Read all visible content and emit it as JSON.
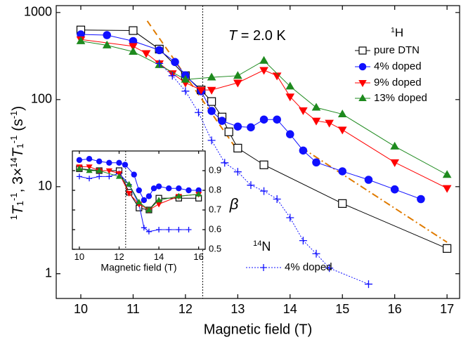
{
  "chart_data": [
    {
      "type": "line",
      "log_y": true,
      "x_label": "Magnetic field  (T)",
      "y_label": [
        "1",
        "T",
        "1",
        "-1",
        ",  3×",
        "14",
        "T",
        "1",
        "-1",
        "  (s",
        "-1",
        ")"
      ],
      "annotation": [
        "T",
        " = 2.0 K"
      ],
      "legend_title": [
        "1",
        "H"
      ],
      "nucleus_label": [
        "14",
        "N"
      ],
      "xlim": [
        9.53,
        17.24
      ],
      "ylim": [
        0.52,
        1200
      ],
      "xticks": [
        10,
        11,
        12,
        13,
        14,
        15,
        16,
        17
      ],
      "yticks": [
        1,
        10,
        100,
        1000
      ],
      "vline": 12.33,
      "series": [
        {
          "name": "pure DTN",
          "color": "#000000",
          "marker": "square-open",
          "line": "solid",
          "x": [
            10,
            11,
            11.5,
            12,
            12.3,
            12.5,
            12.7,
            12.83,
            13,
            13.5,
            15,
            17
          ],
          "values": [
            630,
            620,
            380,
            188,
            129,
            95,
            63,
            42.6,
            27.7,
            17.8,
            6.4,
            1.95
          ]
        },
        {
          "name": "4% doped",
          "color": "#1010ff",
          "marker": "circle",
          "line": "solid",
          "x": [
            10,
            10.5,
            11,
            11.5,
            11.8,
            12,
            12.3,
            12.5,
            12.7,
            13,
            13.25,
            13.5,
            13.75,
            14,
            14.25,
            14.5,
            15,
            15.5,
            16,
            16.5
          ],
          "values": [
            560,
            550,
            470,
            370,
            270,
            190,
            125,
            74,
            57,
            49,
            48,
            59,
            59,
            40,
            26,
            19,
            15,
            12,
            9.3,
            7.2
          ]
        },
        {
          "name": "9% doped",
          "color": "#ff0000",
          "marker": "triangle-down",
          "line": "solid",
          "x": [
            10,
            11,
            11.25,
            11.5,
            11.75,
            12,
            12.3,
            12.5,
            13,
            13.5,
            13.75,
            14,
            14.25,
            14.5,
            14.75,
            15,
            16,
            17
          ],
          "values": [
            490,
            410,
            340,
            260,
            200,
            156,
            129,
            129,
            156,
            218,
            188,
            108,
            75,
            57,
            54,
            45,
            19,
            9.6
          ]
        },
        {
          "name": "13% doped",
          "color": "#1e8a1e",
          "marker": "triangle-up",
          "line": "solid",
          "x": [
            10,
            10.5,
            11,
            11.5,
            12,
            12.5,
            13,
            13.5,
            14,
            14.5,
            15,
            16,
            17
          ],
          "values": [
            470,
            420,
            355,
            250,
            170,
            180,
            188,
            280,
            142,
            81,
            68,
            29,
            13.7
          ]
        },
        {
          "name": "4% doped",
          "color": "#1010ff",
          "marker": "plus",
          "line": "dotted",
          "x": [
            11.5,
            11.75,
            12,
            12.25,
            12.5,
            12.75,
            13,
            13.25,
            13.5,
            13.75,
            14,
            14.25,
            14.5,
            14.75,
            15.5
          ],
          "values": [
            260,
            188,
            125,
            71,
            34,
            18.8,
            14.8,
            10.4,
            8.9,
            7.2,
            4.4,
            2.4,
            1.7,
            1.16,
            0.76
          ]
        }
      ],
      "guides": [
        {
          "color": "#e07b00",
          "dash": "dash",
          "x": [
            11.27,
            13
          ],
          "values": [
            800,
            25.8
          ]
        },
        {
          "color": "#e07b00",
          "dash": "dashdot",
          "x": [
            14.22,
            17
          ],
          "values": [
            28,
            2.3
          ]
        }
      ]
    },
    {
      "type": "line",
      "log_y": false,
      "x_label": "Magnetic field  (T)",
      "y_label": "β",
      "xlim": [
        9.65,
        16.33
      ],
      "ylim": [
        0.5,
        1.0
      ],
      "xticks": [
        10,
        12,
        14,
        16
      ],
      "yticks": [
        0.5,
        0.6,
        0.7,
        0.8,
        0.9
      ],
      "vline": 12.33,
      "series": [
        {
          "color": "#000000",
          "marker": "square-open",
          "line": "solid",
          "x": [
            10,
            11,
            12,
            12.5,
            13,
            13.5,
            14,
            15,
            16
          ],
          "values": [
            0.91,
            0.9,
            0.9,
            0.79,
            0.71,
            0.7,
            0.76,
            0.76,
            0.76
          ]
        },
        {
          "color": "#1010ff",
          "marker": "plus",
          "line": "solid",
          "x": [
            10,
            10.5,
            11,
            11.5,
            12,
            12.5,
            13,
            13.25,
            13.5,
            14,
            14.5,
            15,
            15.5
          ],
          "values": [
            0.87,
            0.86,
            0.87,
            0.87,
            0.886,
            0.83,
            0.73,
            0.61,
            0.59,
            0.6,
            0.6,
            0.6,
            0.6
          ]
        },
        {
          "color": "#1010ff",
          "marker": "circle",
          "line": "solid",
          "x": [
            10,
            10.5,
            11,
            11.5,
            12,
            12.3,
            12.75,
            13,
            13.25,
            13.5,
            13.75,
            14,
            14.5,
            15,
            15.5,
            16
          ],
          "values": [
            0.954,
            0.96,
            0.947,
            0.94,
            0.94,
            0.93,
            0.88,
            0.8,
            0.75,
            0.77,
            0.81,
            0.82,
            0.81,
            0.81,
            0.8,
            0.8
          ]
        },
        {
          "color": "#ff0000",
          "marker": "triangle-down",
          "line": "solid",
          "x": [
            10,
            10.5,
            11,
            11.5,
            12,
            12.5,
            13,
            13.5,
            14,
            15,
            16
          ],
          "values": [
            0.92,
            0.92,
            0.9,
            0.9,
            0.886,
            0.785,
            0.73,
            0.7,
            0.73,
            0.77,
            0.78
          ]
        },
        {
          "color": "#1e8a1e",
          "marker": "triangle-up",
          "line": "solid",
          "x": [
            10,
            10.5,
            11,
            12,
            12.5,
            13,
            13.5,
            14,
            15,
            16
          ],
          "values": [
            0.91,
            0.9,
            0.9,
            0.87,
            0.83,
            0.74,
            0.7,
            0.75,
            0.77,
            0.78
          ]
        }
      ]
    }
  ]
}
